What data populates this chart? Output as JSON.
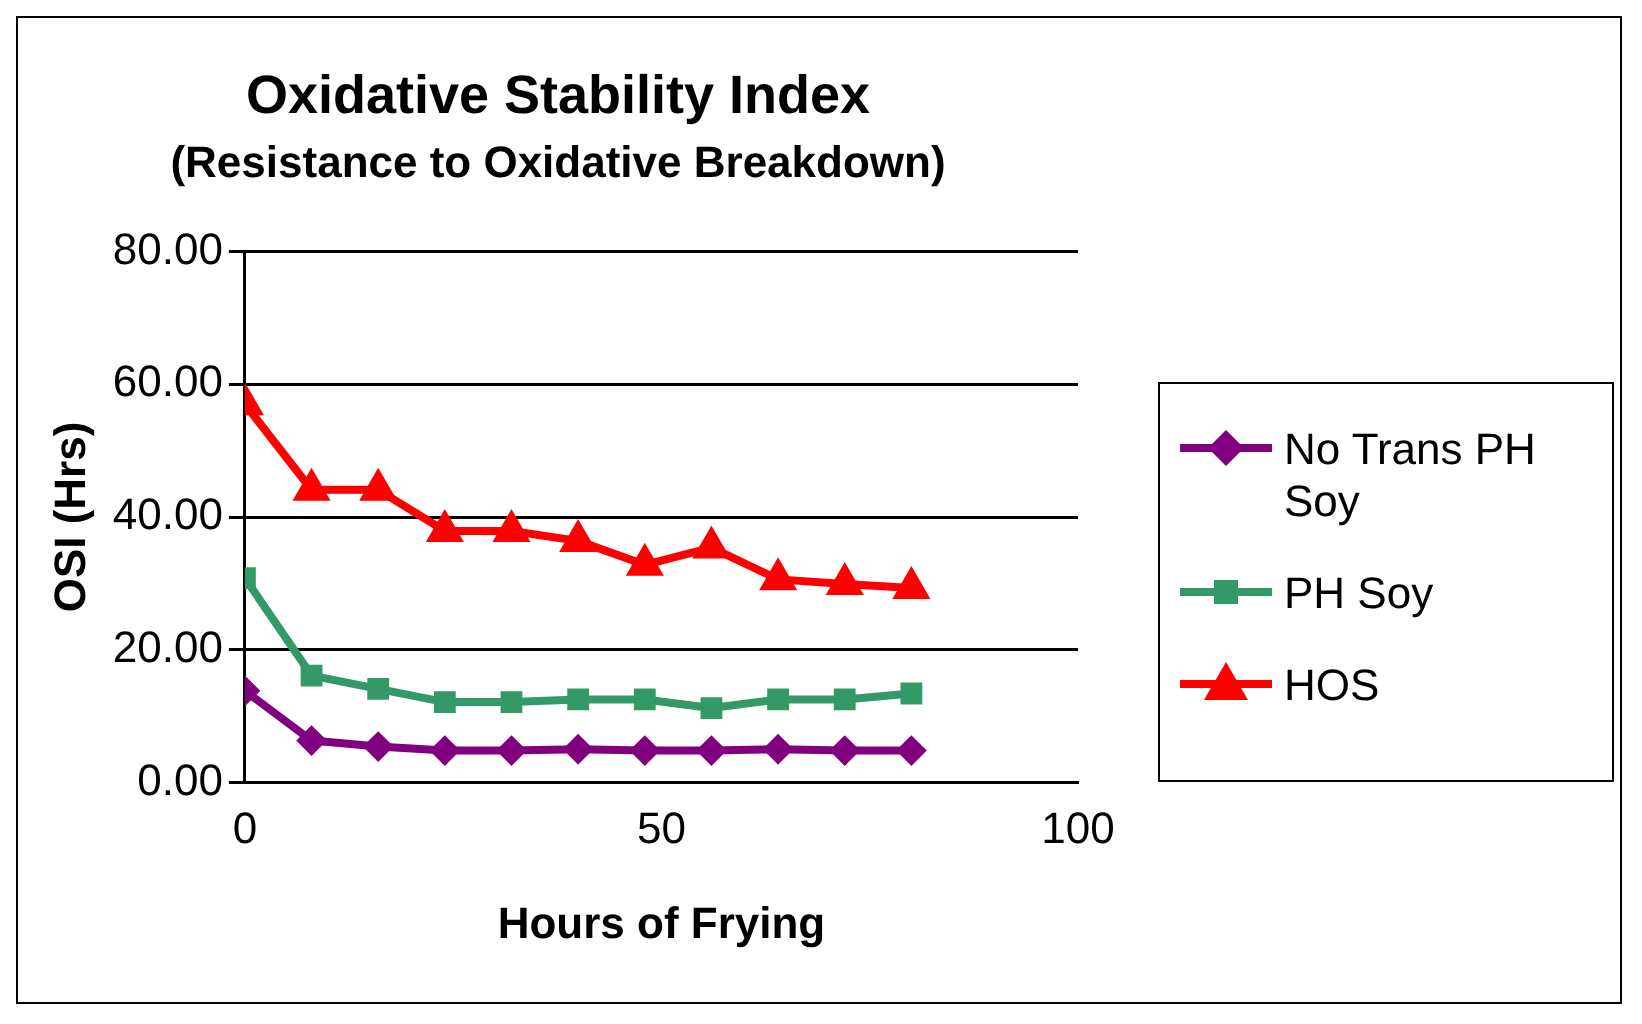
{
  "chart_data": {
    "type": "line",
    "title": "Oxidative Stability Index",
    "subtitle": "(Resistance to Oxidative Breakdown)",
    "xlabel": "Hours of Frying",
    "ylabel": "OSI (Hrs)",
    "x": [
      0,
      8,
      16,
      24,
      32,
      40,
      48,
      56,
      64,
      72,
      80
    ],
    "series": [
      {
        "name": "No Trans PH Soy",
        "color": "#800080",
        "marker": "diamond",
        "values": [
          13.8,
          6.3,
          5.4,
          4.8,
          4.8,
          5.0,
          4.8,
          4.8,
          5.0,
          4.8,
          4.8
        ]
      },
      {
        "name": "PH Soy",
        "color": "#339966",
        "marker": "square",
        "values": [
          30.8,
          16.1,
          14.1,
          12.1,
          12.1,
          12.5,
          12.5,
          11.2,
          12.5,
          12.5,
          13.4
        ]
      },
      {
        "name": "HOS",
        "color": "#ff0000",
        "marker": "triangle",
        "values": [
          57.0,
          44.1,
          44.1,
          37.9,
          37.9,
          36.4,
          32.8,
          35.4,
          30.6,
          29.9,
          29.3
        ]
      }
    ],
    "xlim": [
      0,
      100
    ],
    "xticks": [
      0,
      50,
      100
    ],
    "ylim": [
      0,
      80
    ],
    "yticks": [
      {
        "value": 0,
        "label": "0.00"
      },
      {
        "value": 20,
        "label": "20.00"
      },
      {
        "value": 40,
        "label": "40.00"
      },
      {
        "value": 60,
        "label": "60.00"
      },
      {
        "value": 80,
        "label": "80.00"
      }
    ],
    "grid": "y",
    "legend": "right"
  }
}
